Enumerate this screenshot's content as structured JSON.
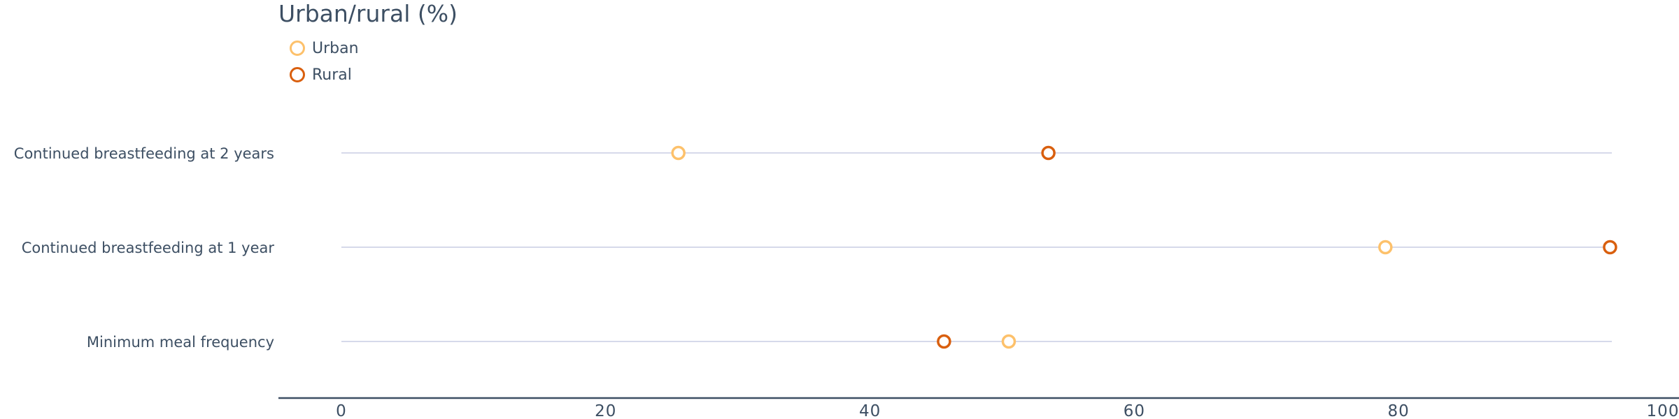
{
  "chart_data": {
    "type": "dot",
    "title": "Urban/rural (%)",
    "categories": [
      "Continued breastfeeding at 2 years",
      "Continued breastfeeding at 1 year",
      "Minimum meal frequency"
    ],
    "series": [
      {
        "name": "Urban",
        "color": "#fdc16b",
        "values": [
          25.5,
          79,
          50.5
        ]
      },
      {
        "name": "Rural",
        "color": "#d95f0e",
        "values": [
          53.5,
          96,
          45.6
        ]
      }
    ],
    "xlim": [
      0,
      100
    ],
    "xticks": [
      0,
      20,
      40,
      60,
      80,
      100
    ],
    "legend_position": "top-left",
    "grid": false
  }
}
